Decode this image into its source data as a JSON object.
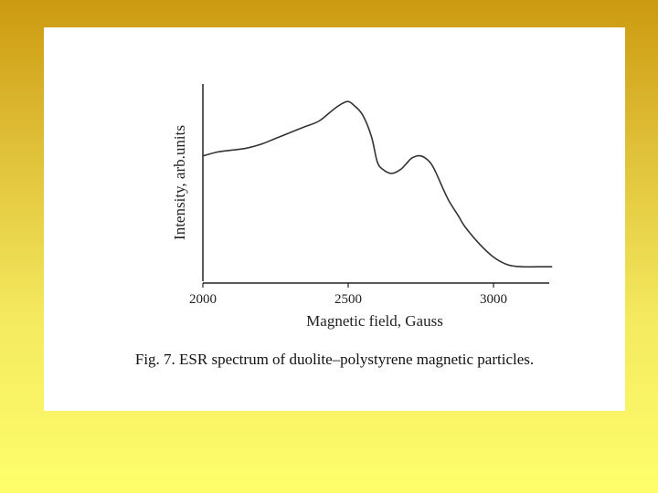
{
  "caption": "Fig. 7. ESR spectrum of duolite–polystyrene magnetic particles.",
  "colors": {
    "line": "#333333",
    "axis": "#222222",
    "panel": "#ffffff"
  },
  "chart_data": {
    "type": "line",
    "title": "",
    "xlabel": "Magnetic field, Gauss",
    "ylabel": "Intensity, arb.units",
    "xlim": [
      2000,
      3200
    ],
    "xticks": [
      2000,
      2500,
      3000
    ],
    "xtick_labels": [
      "2000",
      "2500",
      "3000"
    ],
    "ylim": [
      0,
      1
    ],
    "y_tick_labels_shown": false,
    "grid": false,
    "series": [
      {
        "x": [
          2000,
          2050,
          2100,
          2150,
          2200,
          2250,
          2300,
          2350,
          2400,
          2450,
          2480,
          2500,
          2520,
          2550,
          2580,
          2600,
          2620,
          2650,
          2680,
          2700,
          2720,
          2750,
          2780,
          2800,
          2830,
          2850,
          2880,
          2900,
          2950,
          3000,
          3050,
          3100,
          3150,
          3200
        ],
        "y": [
          0.63,
          0.65,
          0.66,
          0.67,
          0.69,
          0.72,
          0.75,
          0.78,
          0.81,
          0.87,
          0.9,
          0.91,
          0.89,
          0.84,
          0.73,
          0.6,
          0.56,
          0.54,
          0.56,
          0.59,
          0.62,
          0.63,
          0.6,
          0.55,
          0.45,
          0.39,
          0.32,
          0.27,
          0.18,
          0.11,
          0.07,
          0.06,
          0.06,
          0.06
        ]
      }
    ]
  }
}
